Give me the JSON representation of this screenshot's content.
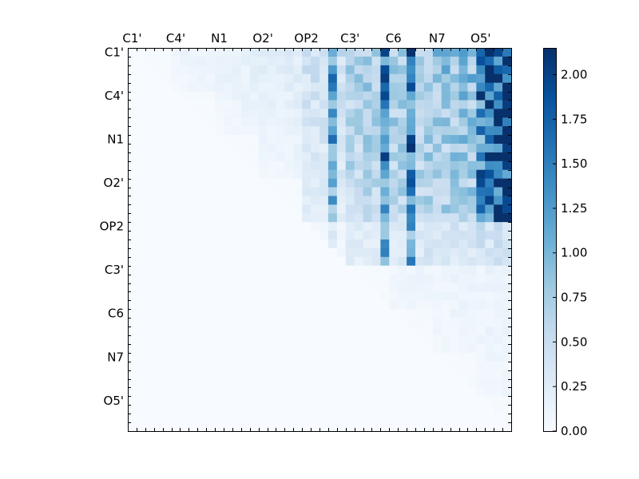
{
  "chart_data": {
    "type": "heatmap",
    "n": 44,
    "x_tick_labels": [
      "C1'",
      "C4'",
      "N1",
      "O2'",
      "OP2",
      "C3'",
      "C6",
      "N7",
      "O5'"
    ],
    "y_tick_labels": [
      "C1'",
      "C4'",
      "N1",
      "O2'",
      "OP2",
      "C3'",
      "C6",
      "N7",
      "O5'"
    ],
    "tick_positions": [
      0.5,
      5.5,
      10.5,
      15.5,
      20.5,
      25.5,
      30.5,
      35.5,
      40.5
    ],
    "grid": false,
    "colorbar": {
      "min": 0.0,
      "max": 2.15,
      "tick_values": [
        0.0,
        0.25,
        0.5,
        0.75,
        1.0,
        1.25,
        1.5,
        1.75,
        2.0
      ],
      "tick_labels": [
        "0.00",
        "0.25",
        "0.50",
        "0.75",
        "1.00",
        "1.25",
        "1.50",
        "1.75",
        "2.00"
      ],
      "colormap": "Blues",
      "stops": [
        "#f7fbff",
        "#deebf7",
        "#c6dbef",
        "#9ecae1",
        "#6baed6",
        "#4292c6",
        "#2171b5",
        "#08519c",
        "#08306b"
      ]
    }
  }
}
